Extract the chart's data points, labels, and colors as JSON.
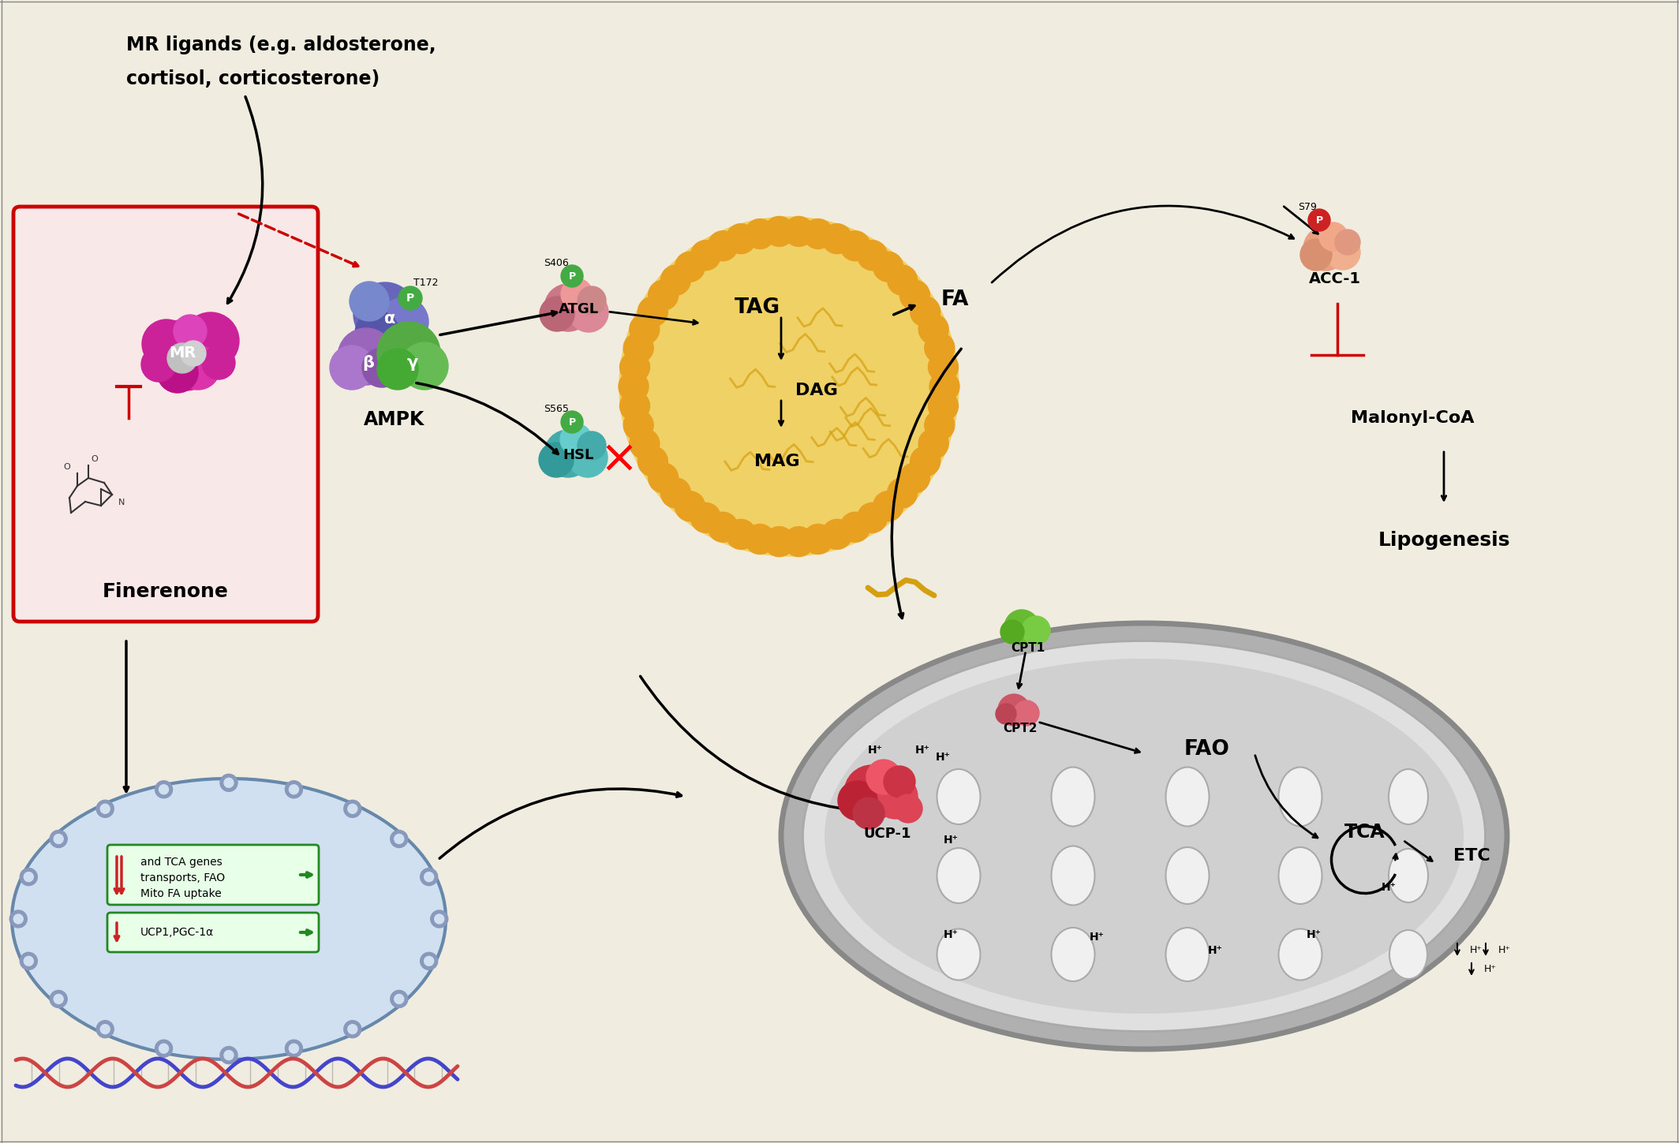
{
  "bg_color": "#f5f0e8",
  "labels": {
    "mr_ligands_1": "MR ligands (e.g. aldosterone,",
    "mr_ligands_2": "cortisol, corticosterone)",
    "finerenone": "Finerenone",
    "ampk": "AMPK",
    "atgl": "ATGL",
    "hsl": "HSL",
    "tag": "TAG",
    "fa": "FA",
    "dag": "DAG",
    "mag": "MAG",
    "acc1": "ACC-1",
    "malonyl_coa": "Malonyl-CoA",
    "lipogenesis": "Lipogenesis",
    "cpt1": "CPT1",
    "cpt2": "CPT2",
    "fao": "FAO",
    "tca": "TCA",
    "etc": "ETC",
    "ucp1": "UCP-1",
    "mr": "MR",
    "t172": "T172",
    "s406": "S406",
    "s565": "S565",
    "s79": "S79",
    "mito_text1": "Mito FA uptake",
    "mito_text2": "transports, FAO",
    "mito_text3": "and TCA genes",
    "ucp_pgc": "UCP1,PGC-1α"
  },
  "colors": {
    "background": "#f0ece0",
    "membrane_head": "#b5a895",
    "membrane_tail": "#c8b89a",
    "red_box_border": "#cc0000",
    "red_box_fill": "#f8e8e8",
    "phospho_green": "#44aa44",
    "phospho_red": "#cc2222",
    "green_arrow": "#228822",
    "red_arrow": "#cc2222",
    "dna_blue": "#4444cc",
    "dna_red": "#cc4444",
    "nucleus_border": "#6688aa",
    "nucleus_fill": "#d0e0f0",
    "nucleus_pore": "#8899bb",
    "gene_box_fill": "#e8ffe8",
    "gene_box_border": "#228822",
    "lipid_orange": "#e8a020",
    "lipid_yellow": "#f0d060",
    "mito_outer_fill": "#b0b0b0",
    "mito_outer_edge": "#888888",
    "mito_inner_fill": "#e0e0e0",
    "mito_inner_edge": "#aaaaaa",
    "mito_matrix_fill": "#d0d0d0",
    "mito_cristae_fill": "#f0f0f0",
    "black": "#111111",
    "red": "#cc0000",
    "white": "#ffffff"
  }
}
